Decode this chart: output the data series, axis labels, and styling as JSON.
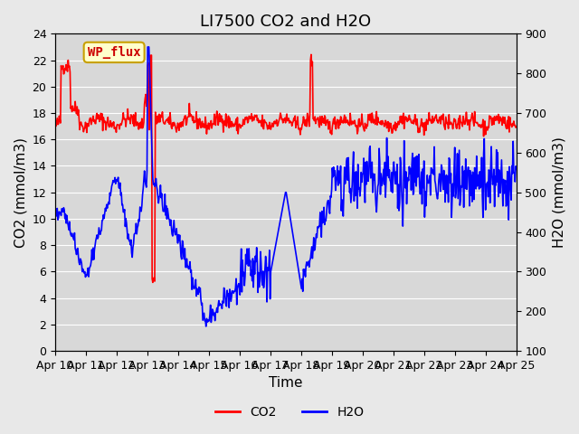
{
  "title": "LI7500 CO2 and H2O",
  "xlabel": "Time",
  "ylabel_left": "CO2 (mmol/m3)",
  "ylabel_right": "H2O (mmol/m3)",
  "ylim_left": [
    0,
    24
  ],
  "ylim_right": [
    100,
    900
  ],
  "yticks_left": [
    0,
    2,
    4,
    6,
    8,
    10,
    12,
    14,
    16,
    18,
    20,
    22,
    24
  ],
  "yticks_right": [
    100,
    200,
    300,
    400,
    500,
    600,
    700,
    800,
    900
  ],
  "xtick_labels": [
    "Apr 10",
    "Apr 11",
    "Apr 12",
    "Apr 13",
    "Apr 14",
    "Apr 15",
    "Apr 16",
    "Apr 17",
    "Apr 18",
    "Apr 19",
    "Apr 20",
    "Apr 21",
    "Apr 22",
    "Apr 23",
    "Apr 24",
    "Apr 25"
  ],
  "co2_color": "#ff0000",
  "h2o_color": "#0000ff",
  "bg_color": "#e8e8e8",
  "plot_bg_color": "#d8d8d8",
  "annotation_text": "WP_flux",
  "annotation_bg": "#ffffcc",
  "annotation_border": "#c8a000",
  "title_fontsize": 13,
  "axis_fontsize": 11,
  "tick_fontsize": 9,
  "legend_fontsize": 10,
  "linewidth": 1.2
}
